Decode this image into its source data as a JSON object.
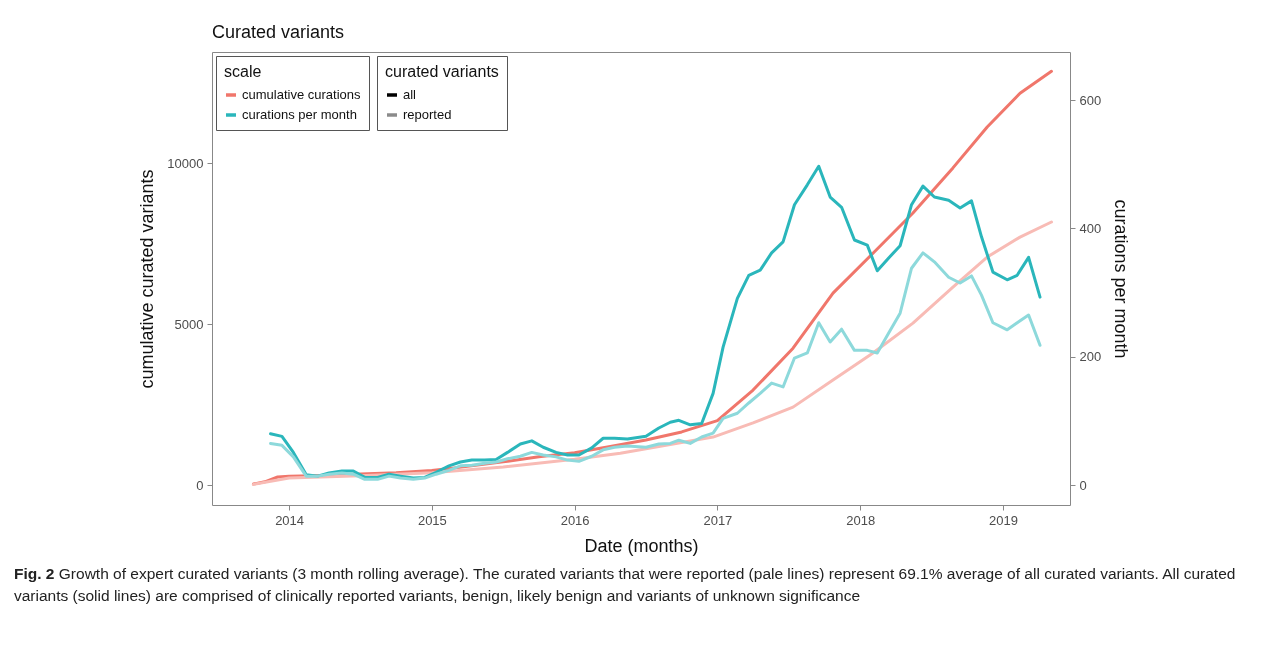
{
  "chart_data": {
    "type": "line",
    "title": "Curated variants",
    "xlabel": "Date (months)",
    "ylabel": "cumulative curated variants",
    "y2label": "curations per month",
    "legend_title": "scale",
    "annotations": [
      "curated variants",
      "all",
      "reported",
      "Fig. 2 Growth of expert curated variants (3 month rolling average). The curated variants that were reported (pale lines) represent 69.1% average of all curated variants. All curated variants (solid lines) are comprised of clinically reported variants, benign, likely benign and variants of unknown significance"
    ],
    "xlim": [
      2013.46,
      2019.47
    ],
    "xticks": [
      2014,
      2015,
      2016,
      2017,
      2018,
      2019
    ],
    "ylim": [
      -620,
      13450
    ],
    "yticks": [
      0,
      5000,
      10000
    ],
    "y2lim": [
      -31,
      675
    ],
    "y2ticks": [
      0,
      200,
      400,
      600
    ],
    "grid": false,
    "legend": "top left",
    "line_style": "solid",
    "series": [
      {
        "name": "cumulative curations",
        "color": "#f0766b",
        "x": [
          2013.75,
          2013.83,
          2013.92,
          2014.0,
          2014.25,
          2014.5,
          2014.75,
          2015.0,
          2015.25,
          2015.5,
          2015.75,
          2016.0,
          2016.25,
          2016.5,
          2016.75,
          2017.0,
          2017.25,
          2017.53,
          2017.81,
          2018.09,
          2018.37,
          2018.65,
          2018.89,
          2019.12,
          2019.34
        ],
        "values": [
          30,
          100,
          250,
          270,
          300,
          340,
          380,
          450,
          580,
          720,
          880,
          1000,
          1200,
          1400,
          1650,
          2000,
          2950,
          4250,
          5960,
          7200,
          8450,
          9850,
          11120,
          12170,
          12850
        ]
      },
      {
        "color": "#f8bbb5",
        "x": [
          2013.75,
          2014.0,
          2014.5,
          2015.0,
          2015.5,
          2016.0,
          2016.32,
          2016.97,
          2017.25,
          2017.53,
          2017.81,
          2018.09,
          2018.37,
          2018.65,
          2018.89,
          2019.12,
          2019.34
        ],
        "values": [
          20,
          220,
          290,
          380,
          560,
          800,
          990,
          1490,
          1930,
          2420,
          3260,
          4100,
          5030,
          6150,
          7080,
          7700,
          8170
        ]
      },
      {
        "name": "curations per month",
        "color": "#2ab6bb",
        "axis": "y2",
        "x": [
          2013.87,
          2013.95,
          2014.03,
          2014.12,
          2014.2,
          2014.28,
          2014.37,
          2014.45,
          2014.53,
          2014.62,
          2014.7,
          2014.78,
          2014.87,
          2014.95,
          2015.03,
          2015.12,
          2015.2,
          2015.28,
          2015.37,
          2015.45,
          2015.53,
          2015.62,
          2015.7,
          2015.78,
          2015.87,
          2015.95,
          2016.03,
          2016.12,
          2016.2,
          2016.28,
          2016.37,
          2016.5,
          2016.59,
          2016.67,
          2016.73,
          2016.81,
          2016.89,
          2016.97,
          2017.04,
          2017.14,
          2017.22,
          2017.3,
          2017.38,
          2017.46,
          2017.54,
          2017.63,
          2017.71,
          2017.79,
          2017.87,
          2017.96,
          2018.05,
          2018.12,
          2018.2,
          2018.28,
          2018.36,
          2018.44,
          2018.52,
          2018.62,
          2018.7,
          2018.78,
          2018.85,
          2018.93,
          2019.03,
          2019.1,
          2019.18,
          2019.26
        ],
        "values": [
          80,
          76,
          51,
          16,
          14,
          19,
          22,
          22,
          12,
          12,
          17,
          14,
          11,
          12,
          20,
          30,
          36,
          39,
          39,
          40,
          51,
          64,
          69,
          59,
          51,
          47,
          47,
          58,
          73,
          73,
          72,
          76,
          89,
          98,
          101,
          94,
          96,
          143,
          215,
          291,
          327,
          335,
          362,
          379,
          437,
          468,
          497,
          449,
          433,
          382,
          374,
          334,
          354,
          373,
          437,
          466,
          449,
          444,
          432,
          443,
          387,
          332,
          320,
          327,
          355,
          293
        ]
      },
      {
        "color": "#8dd9db",
        "axis": "y2",
        "x": [
          2013.87,
          2013.95,
          2014.03,
          2014.12,
          2014.2,
          2014.28,
          2014.37,
          2014.45,
          2014.53,
          2014.62,
          2014.7,
          2014.78,
          2014.87,
          2014.95,
          2015.03,
          2015.12,
          2015.2,
          2015.28,
          2015.37,
          2015.45,
          2015.53,
          2015.62,
          2015.7,
          2015.78,
          2015.87,
          2015.95,
          2016.03,
          2016.12,
          2016.2,
          2016.28,
          2016.37,
          2016.5,
          2016.59,
          2016.67,
          2016.73,
          2016.81,
          2016.89,
          2016.97,
          2017.04,
          2017.14,
          2017.22,
          2017.3,
          2017.38,
          2017.46,
          2017.54,
          2017.63,
          2017.71,
          2017.79,
          2017.87,
          2017.96,
          2018.05,
          2018.12,
          2018.2,
          2018.28,
          2018.36,
          2018.44,
          2018.52,
          2018.62,
          2018.7,
          2018.78,
          2018.85,
          2018.93,
          2019.03,
          2019.1,
          2019.18,
          2019.26
        ],
        "values": [
          65,
          62,
          44,
          14,
          14,
          17,
          19,
          17,
          9,
          9,
          14,
          11,
          9,
          11,
          17,
          23,
          30,
          31,
          34,
          36,
          41,
          45,
          51,
          47,
          44,
          39,
          37,
          45,
          55,
          59,
          61,
          59,
          64,
          65,
          70,
          65,
          75,
          81,
          104,
          112,
          128,
          143,
          159,
          153,
          198,
          206,
          253,
          223,
          243,
          210,
          210,
          206,
          237,
          268,
          338,
          362,
          348,
          324,
          315,
          326,
          296,
          253,
          242,
          253,
          265,
          218
        ]
      }
    ]
  }
}
